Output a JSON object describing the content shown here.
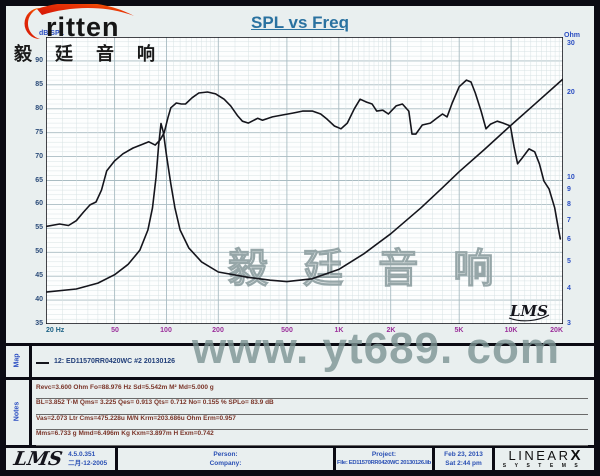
{
  "header": {
    "title": "SPL vs Freq"
  },
  "logo": {
    "brand": "ritten",
    "brand_cn": "毅 廷 音 响"
  },
  "watermarks": {
    "center_cn": "毅 廷 音 响",
    "site": "www. yt689. com",
    "plot_signature": "LMS"
  },
  "chart_data": {
    "type": "line",
    "title": "SPL vs Freq",
    "grid": "log-log fine grid",
    "legend_position": "map row below chart",
    "x_axis": {
      "label": "Hz",
      "scale": "log",
      "min": 20,
      "max": 20000,
      "ticks": [
        {
          "v": 20,
          "label": "20 Hz"
        },
        {
          "v": 50,
          "label": "50"
        },
        {
          "v": 100,
          "label": "100"
        },
        {
          "v": 200,
          "label": "200"
        },
        {
          "v": 500,
          "label": "500"
        },
        {
          "v": 1000,
          "label": "1K"
        },
        {
          "v": 2000,
          "label": "2K"
        },
        {
          "v": 5000,
          "label": "5K"
        },
        {
          "v": 10000,
          "label": "10K"
        },
        {
          "v": 20000,
          "label": "20K"
        }
      ]
    },
    "y_left": {
      "label": "dB SPL",
      "scale": "linear",
      "min": 35,
      "max": 95,
      "ticks": [
        90,
        85,
        80,
        75,
        70,
        65,
        60,
        55,
        50,
        45,
        40,
        35
      ]
    },
    "y_right": {
      "label": "Ohm",
      "scale": "log",
      "min": 3,
      "max": 30,
      "ticks": [
        30,
        20,
        10,
        9,
        8,
        7,
        6,
        5,
        4,
        3
      ]
    },
    "series": [
      {
        "name": "SPL 12: ED11570RR0420WC #2 20130126",
        "axis": "left",
        "unit": "dB",
        "points": [
          [
            20,
            55.4
          ],
          [
            24,
            55.9
          ],
          [
            27,
            55.6
          ],
          [
            30,
            56.6
          ],
          [
            33,
            58.4
          ],
          [
            36,
            59.9
          ],
          [
            39,
            60.5
          ],
          [
            42,
            63
          ],
          [
            45,
            67
          ],
          [
            50,
            69.1
          ],
          [
            56,
            70.6
          ],
          [
            64,
            71.8
          ],
          [
            73,
            72.6
          ],
          [
            79,
            73.1
          ],
          [
            86,
            72.4
          ],
          [
            92,
            73.5
          ],
          [
            97,
            75
          ],
          [
            102,
            78.1
          ],
          [
            106,
            80.2
          ],
          [
            114,
            81.2
          ],
          [
            122,
            81
          ],
          [
            129,
            81
          ],
          [
            141,
            82.3
          ],
          [
            154,
            83.3
          ],
          [
            173,
            83.5
          ],
          [
            193,
            83.1
          ],
          [
            216,
            82
          ],
          [
            236,
            80.6
          ],
          [
            259,
            78.5
          ],
          [
            276,
            77.4
          ],
          [
            299,
            77
          ],
          [
            338,
            78
          ],
          [
            361,
            77.6
          ],
          [
            412,
            78.3
          ],
          [
            471,
            78.7
          ],
          [
            540,
            79.1
          ],
          [
            616,
            79.5
          ],
          [
            705,
            79.5
          ],
          [
            785,
            78.9
          ],
          [
            857,
            77.8
          ],
          [
            943,
            76.4
          ],
          [
            1030,
            75.8
          ],
          [
            1120,
            77
          ],
          [
            1230,
            80
          ],
          [
            1330,
            82
          ],
          [
            1450,
            81.4
          ],
          [
            1560,
            81
          ],
          [
            1660,
            79.5
          ],
          [
            1800,
            79.7
          ],
          [
            1940,
            78.9
          ],
          [
            2150,
            80.6
          ],
          [
            2340,
            81
          ],
          [
            2550,
            79.5
          ],
          [
            2660,
            74.7
          ],
          [
            2800,
            74.7
          ],
          [
            3050,
            76.6
          ],
          [
            3400,
            77
          ],
          [
            3700,
            78
          ],
          [
            4000,
            78.9
          ],
          [
            4250,
            78.3
          ],
          [
            4550,
            81.2
          ],
          [
            5000,
            84.6
          ],
          [
            5500,
            86
          ],
          [
            5850,
            85.6
          ],
          [
            6200,
            83.3
          ],
          [
            6700,
            79.5
          ],
          [
            7150,
            75.8
          ],
          [
            7600,
            76.8
          ],
          [
            8300,
            77.4
          ],
          [
            9000,
            77
          ],
          [
            9900,
            76.4
          ],
          [
            10400,
            72
          ],
          [
            10900,
            68.5
          ],
          [
            11600,
            69.7
          ],
          [
            12700,
            71.6
          ],
          [
            13700,
            71
          ],
          [
            14600,
            68.5
          ],
          [
            15500,
            64.9
          ],
          [
            16600,
            63.2
          ],
          [
            17900,
            59.3
          ],
          [
            18800,
            54.9
          ],
          [
            19300,
            52.8
          ]
        ]
      },
      {
        "name": "Impedance",
        "axis": "right",
        "unit": "Ohm",
        "points": [
          [
            20,
            3.9
          ],
          [
            30,
            4.0
          ],
          [
            40,
            4.2
          ],
          [
            50,
            4.5
          ],
          [
            60,
            4.9
          ],
          [
            70,
            5.5
          ],
          [
            78,
            6.5
          ],
          [
            83,
            7.8
          ],
          [
            87,
            10
          ],
          [
            90,
            13
          ],
          [
            93,
            15.6
          ],
          [
            96,
            14.5
          ],
          [
            100,
            12
          ],
          [
            106,
            9.5
          ],
          [
            112,
            7.8
          ],
          [
            120,
            6.5
          ],
          [
            135,
            5.6
          ],
          [
            160,
            5.0
          ],
          [
            200,
            4.6
          ],
          [
            300,
            4.4
          ],
          [
            400,
            4.3
          ],
          [
            500,
            4.25
          ],
          [
            700,
            4.35
          ],
          [
            1000,
            4.7
          ],
          [
            1400,
            5.35
          ],
          [
            2000,
            6.3
          ],
          [
            3000,
            7.8
          ],
          [
            4000,
            9.2
          ],
          [
            5000,
            10.5
          ],
          [
            7000,
            12.6
          ],
          [
            10000,
            15.4
          ],
          [
            14000,
            18.5
          ],
          [
            20000,
            22.5
          ]
        ]
      }
    ]
  },
  "map": {
    "label": "Map",
    "legend": "12:  ED11570RR0420WC #2 20130126"
  },
  "notes": {
    "label": "Notes",
    "lines": [
      "Revc=3.600 Ohm   Fo=88.976 Hz   Sd=5.542m M²   Md=5.000 g",
      "BL=3.852 T·M   Qms= 3.225   Qes= 0.913   Qts= 0.712   No= 0.155 %   SPLo= 83.9 dB",
      "Vas=2.073 Ltr   Cms=475.228u M/N   Krm=203.686u Ohm   Erm=0.957",
      "Mms=6.733 g   Mmd=6.496m Kg   Kxm=3.897m H   Exm=0.742"
    ]
  },
  "footer": {
    "lms_logo": "LMS",
    "version": "4.5.0.351",
    "date_cn": "二月-12-2005",
    "person_label": "Person:",
    "company_label": "Company:",
    "project_label": "Project:",
    "file_label": "File: ED11570RR0420WC 20130126.lib",
    "date": "Feb 23, 2013",
    "time": "Sat  2:44 pm",
    "brand": {
      "name": "LINEAR",
      "x": "X",
      "sub": "SYSTEMS"
    }
  },
  "colors": {
    "title": "#2a72a0",
    "axis_left": "#2a4a78",
    "axis_right": "#2b4ec2",
    "freq_labels": "#9b2f9b",
    "freq_first": "#1c6285",
    "notes_text": "#7a3428",
    "footer_text": "#2a50b4",
    "grid_minor": "#d7e2e4",
    "grid_major": "#a9bcc2",
    "curve": "#15151c",
    "border": "#0b0b13",
    "watermark": "#96a6a8",
    "plot_bg": "#fdfefe",
    "logo_red": "#d41408",
    "logo_orange": "#ff7a00"
  }
}
